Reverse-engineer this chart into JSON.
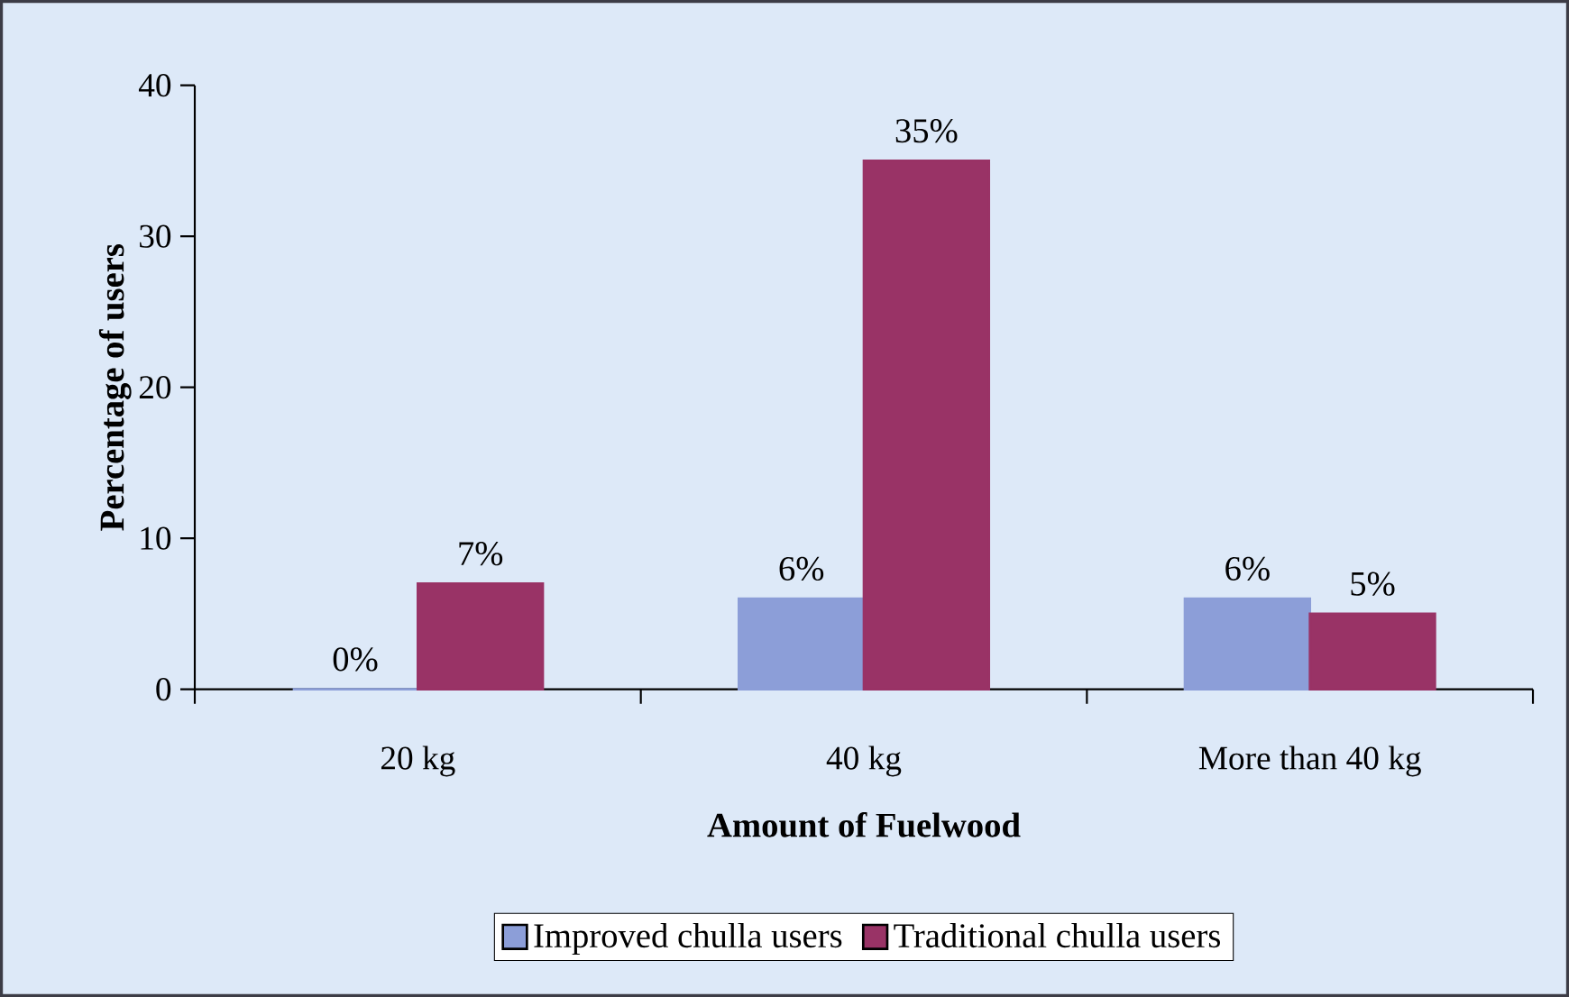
{
  "chart_data": {
    "type": "bar",
    "xlabel": "Amount of Fuelwood",
    "ylabel": "Percentage of users",
    "categories": [
      "20 kg",
      "40 kg",
      "More than 40 kg"
    ],
    "series": [
      {
        "name": "Improved chulla users",
        "color": "#8c9ed8",
        "values": [
          0,
          6,
          6
        ],
        "value_labels": [
          "0%",
          "6%",
          "6%"
        ]
      },
      {
        "name": "Traditional chulla users",
        "color": "#993366",
        "values": [
          7,
          35,
          5
        ],
        "value_labels": [
          "7%",
          "35%",
          "5%"
        ]
      }
    ],
    "ylim": [
      0,
      40
    ],
    "yticks": [
      0,
      10,
      20,
      30,
      40
    ],
    "grid": false,
    "legend": "bottom"
  }
}
